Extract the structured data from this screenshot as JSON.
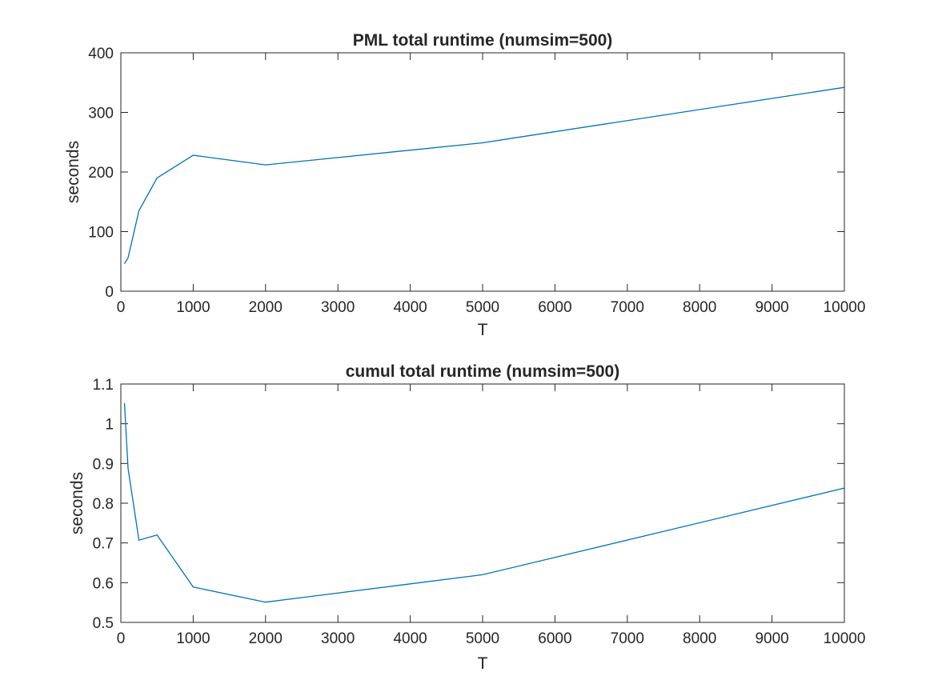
{
  "chart_data": [
    {
      "type": "line",
      "title": "PML total runtime (numsim=500)",
      "xlabel": "T",
      "ylabel": "seconds",
      "xlim": [
        0,
        10000
      ],
      "ylim": [
        0,
        400
      ],
      "xticks": [
        "0",
        "1000",
        "2000",
        "3000",
        "4000",
        "5000",
        "6000",
        "7000",
        "8000",
        "9000",
        "10000"
      ],
      "yticks": [
        "0",
        "100",
        "200",
        "300",
        "400"
      ],
      "grid": false,
      "series": [
        {
          "color": "#0072BD",
          "x": [
            50,
            100,
            250,
            500,
            1000,
            2000,
            5000,
            10000
          ],
          "y": [
            46,
            56,
            135,
            190,
            228,
            212,
            249,
            342
          ]
        }
      ]
    },
    {
      "type": "line",
      "title": "cumul total runtime (numsim=500)",
      "xlabel": "T",
      "ylabel": "seconds",
      "xlim": [
        0,
        10000
      ],
      "ylim": [
        0.5,
        1.1
      ],
      "xticks": [
        "0",
        "1000",
        "2000",
        "3000",
        "4000",
        "5000",
        "6000",
        "7000",
        "8000",
        "9000",
        "10000"
      ],
      "yticks": [
        "0.5",
        "0.6",
        "0.7",
        "0.8",
        "0.9",
        "1",
        "1.1"
      ],
      "grid": false,
      "series": [
        {
          "color": "#0072BD",
          "x": [
            50,
            100,
            250,
            500,
            1000,
            2000,
            5000,
            10000
          ],
          "y": [
            1.052,
            0.888,
            0.707,
            0.72,
            0.589,
            0.551,
            0.62,
            0.838
          ]
        }
      ]
    }
  ]
}
